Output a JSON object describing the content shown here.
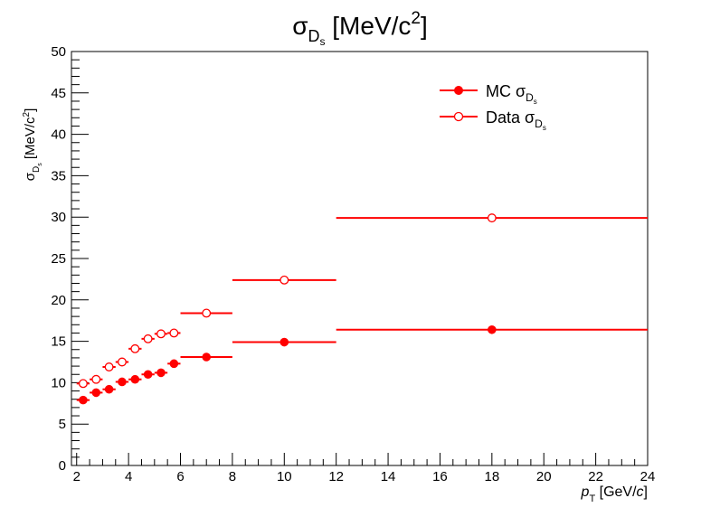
{
  "chart_data": {
    "type": "scatter",
    "title": {
      "symbol": "σ",
      "sub": "D",
      "subsub": "s",
      "unit": " [MeV/c",
      "sup": "2",
      "close": "]"
    },
    "xlabel": {
      "var": "p",
      "sub": "T",
      "unit": " [GeV/",
      "unit_var": "c",
      "close": "]"
    },
    "ylabel": {
      "symbol": "σ",
      "sub": "D",
      "subsub": "s",
      "unit": " [MeV/c",
      "sup": "2",
      "close": "]"
    },
    "xlim": [
      1.8,
      24
    ],
    "ylim": [
      0,
      50
    ],
    "x_ticks": [
      "2",
      "4",
      "6",
      "8",
      "10",
      "12",
      "14",
      "16",
      "18",
      "20",
      "22",
      "24"
    ],
    "y_ticks": [
      "0",
      "5",
      "10",
      "15",
      "20",
      "25",
      "30",
      "35",
      "40",
      "45",
      "50"
    ],
    "legend_position": "top-right",
    "color": "#ff0000",
    "series": [
      {
        "name": "MC σDs",
        "label": {
          "prefix": "MC ",
          "symbol": "σ",
          "sub": "D",
          "subsub": "s"
        },
        "marker": "filled-circle",
        "points": [
          {
            "x": 2.25,
            "xlo": 2.0,
            "xhi": 2.5,
            "y": 7.9,
            "yerr": 0.2
          },
          {
            "x": 2.75,
            "xlo": 2.5,
            "xhi": 3.0,
            "y": 8.8,
            "yerr": 0.2
          },
          {
            "x": 3.25,
            "xlo": 3.0,
            "xhi": 3.5,
            "y": 9.2,
            "yerr": 0.2
          },
          {
            "x": 3.75,
            "xlo": 3.5,
            "xhi": 4.0,
            "y": 10.1,
            "yerr": 0.2
          },
          {
            "x": 4.25,
            "xlo": 4.0,
            "xhi": 4.5,
            "y": 10.4,
            "yerr": 0.2
          },
          {
            "x": 4.75,
            "xlo": 4.5,
            "xhi": 5.0,
            "y": 11.0,
            "yerr": 0.2
          },
          {
            "x": 5.25,
            "xlo": 5.0,
            "xhi": 5.5,
            "y": 11.2,
            "yerr": 0.2
          },
          {
            "x": 5.75,
            "xlo": 5.5,
            "xhi": 6.0,
            "y": 12.3,
            "yerr": 0.2
          },
          {
            "x": 7.0,
            "xlo": 6.0,
            "xhi": 8.0,
            "y": 13.1,
            "yerr": 0.2
          },
          {
            "x": 10.0,
            "xlo": 8.0,
            "xhi": 12.0,
            "y": 14.9,
            "yerr": 0.2
          },
          {
            "x": 18.0,
            "xlo": 12.0,
            "xhi": 24.0,
            "y": 16.4,
            "yerr": 0.2
          }
        ]
      },
      {
        "name": "Data σDs",
        "label": {
          "prefix": "Data ",
          "symbol": "σ",
          "sub": "D",
          "subsub": "s"
        },
        "marker": "open-circle",
        "points": [
          {
            "x": 2.25,
            "xlo": 2.0,
            "xhi": 2.5,
            "y": 9.9,
            "yerr": 0.0
          },
          {
            "x": 2.75,
            "xlo": 2.5,
            "xhi": 3.0,
            "y": 10.4,
            "yerr": 0.0
          },
          {
            "x": 3.25,
            "xlo": 3.0,
            "xhi": 3.5,
            "y": 11.9,
            "yerr": 0.0
          },
          {
            "x": 3.75,
            "xlo": 3.5,
            "xhi": 4.0,
            "y": 12.5,
            "yerr": 0.0
          },
          {
            "x": 4.25,
            "xlo": 4.0,
            "xhi": 4.5,
            "y": 14.1,
            "yerr": 0.0
          },
          {
            "x": 4.75,
            "xlo": 4.5,
            "xhi": 5.0,
            "y": 15.3,
            "yerr": 0.0
          },
          {
            "x": 5.25,
            "xlo": 5.0,
            "xhi": 5.5,
            "y": 15.9,
            "yerr": 0.0
          },
          {
            "x": 5.75,
            "xlo": 5.5,
            "xhi": 6.0,
            "y": 16.0,
            "yerr": 0.0
          },
          {
            "x": 7.0,
            "xlo": 6.0,
            "xhi": 8.0,
            "y": 18.4,
            "yerr": 0.0
          },
          {
            "x": 10.0,
            "xlo": 8.0,
            "xhi": 12.0,
            "y": 22.4,
            "yerr": 0.0
          },
          {
            "x": 18.0,
            "xlo": 12.0,
            "xhi": 24.0,
            "y": 29.9,
            "yerr": 0.0
          }
        ]
      }
    ]
  }
}
